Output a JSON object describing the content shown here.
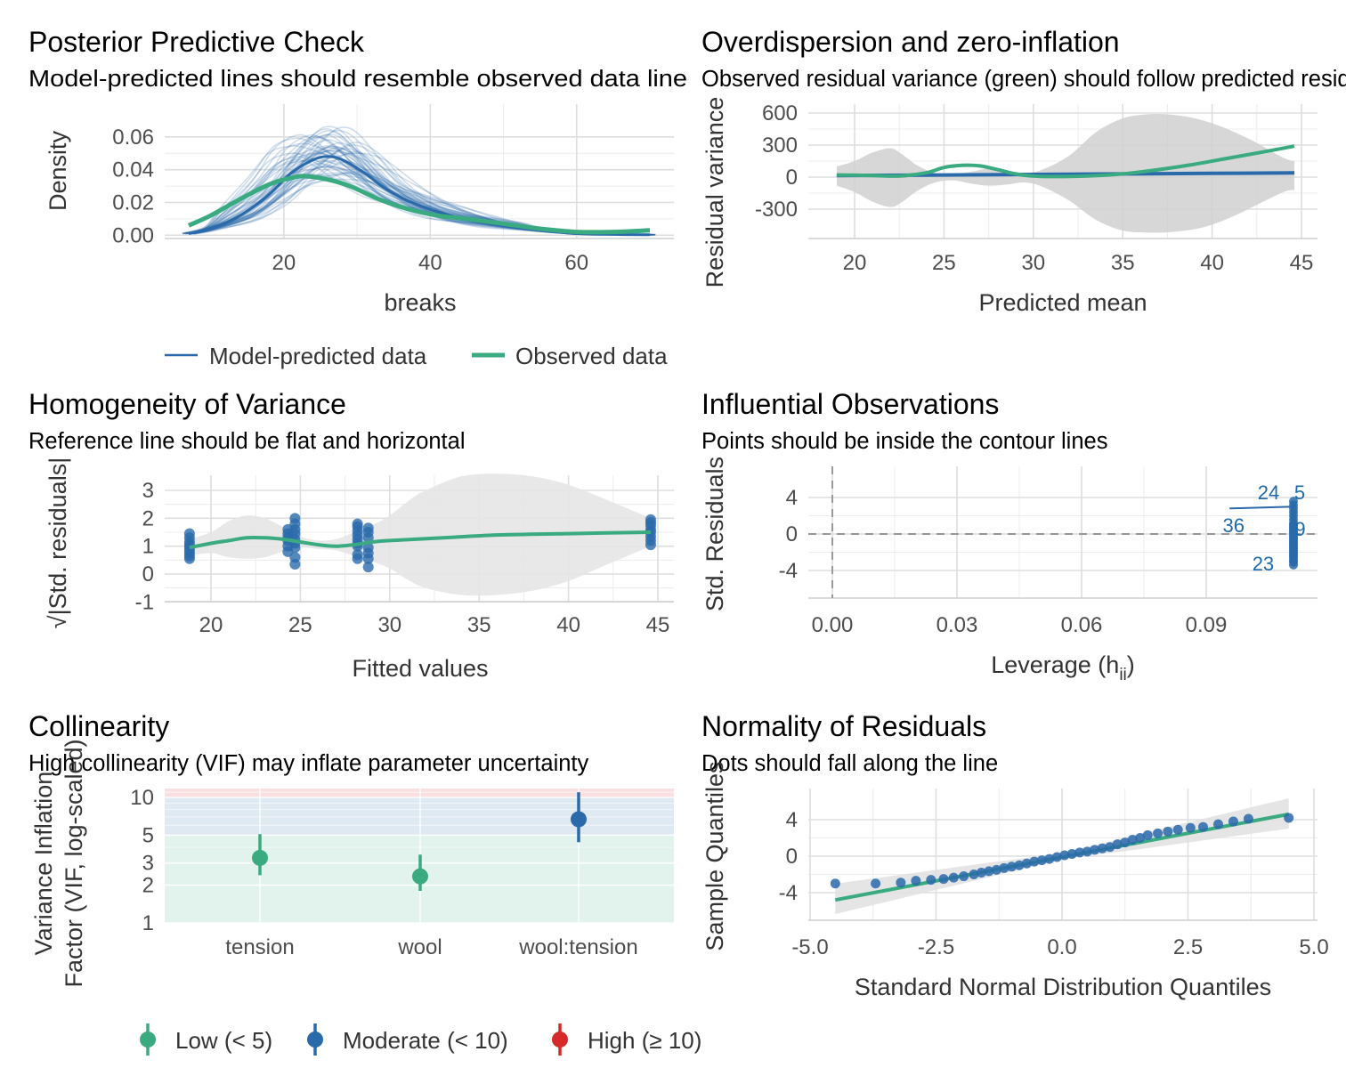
{
  "colors": {
    "blue": "#2a6aaa",
    "green": "#3aaa80",
    "red": "#d62a28",
    "band": "#d0d0d0"
  },
  "panels": {
    "ppc": {
      "title": "Posterior Predictive Check",
      "subtitle": "Model-predicted lines should resemble observed data line",
      "xlabel": "breaks",
      "ylabel": "Density",
      "legend": [
        "Model-predicted data",
        "Observed data"
      ]
    },
    "overdisp": {
      "title": "Overdispersion and zero-inflation",
      "subtitle": "Observed residual variance (green) should follow predicted residual variance (blue)",
      "xlabel": "Predicted mean",
      "ylabel": "Residual variance"
    },
    "homog": {
      "title": "Homogeneity of Variance",
      "subtitle": "Reference line should be flat and horizontal",
      "xlabel": "Fitted values",
      "ylabel": "√|Std. residuals|"
    },
    "infl": {
      "title": "Influential Observations",
      "subtitle": "Points should be inside the contour lines",
      "xlabel": "Leverage (h",
      "xlabel_sub": "ii",
      "xlabel_end": ")",
      "ylabel": "Std. Residuals"
    },
    "coll": {
      "title": "Collinearity",
      "subtitle": "High collinearity (VIF) may inflate parameter uncertainty",
      "ylabel1": "Variance Inflation",
      "ylabel2": "Factor (VIF, log-scaled)",
      "legend": [
        "Low (< 5)",
        "Moderate (< 10)",
        "High (≥ 10)"
      ]
    },
    "norm": {
      "title": "Normality of Residuals",
      "subtitle": "Dots should fall along the line",
      "xlabel": "Standard Normal Distribution Quantiles",
      "ylabel": "Sample Quantiles"
    }
  },
  "chart_data": [
    {
      "id": "ppc",
      "type": "line",
      "xlim": [
        7,
        70
      ],
      "ylim": [
        -0.002,
        0.08
      ],
      "xticks": [
        20,
        40,
        60
      ],
      "yticks": [
        0,
        0.02,
        0.04,
        0.06
      ],
      "ytick_labels": [
        "0.00",
        "0.02",
        "0.04",
        "0.06"
      ],
      "series": [
        {
          "name": "Observed data",
          "x": [
            7,
            10,
            14,
            18,
            21,
            23,
            26,
            29,
            33,
            37,
            41,
            45,
            50,
            55,
            60,
            65,
            70
          ],
          "y": [
            0.006,
            0.012,
            0.022,
            0.031,
            0.035,
            0.036,
            0.034,
            0.03,
            0.022,
            0.016,
            0.012,
            0.01,
            0.007,
            0.004,
            0.002,
            0.002,
            0.003
          ]
        },
        {
          "name": "Model-predicted data",
          "x": [
            7,
            10,
            14,
            18,
            21,
            24,
            26,
            28,
            31,
            34,
            38,
            42,
            46,
            50,
            55,
            60,
            65,
            70
          ],
          "y": [
            0.001,
            0.004,
            0.012,
            0.025,
            0.038,
            0.046,
            0.048,
            0.046,
            0.038,
            0.028,
            0.019,
            0.013,
            0.009,
            0.006,
            0.003,
            0.001,
            0.0005,
            0.0003
          ]
        }
      ]
    },
    {
      "id": "overdisp",
      "type": "area",
      "xlim": [
        17.5,
        45.8
      ],
      "ylim": [
        -560,
        660
      ],
      "xticks": [
        20,
        25,
        30,
        35,
        40,
        45
      ],
      "yticks": [
        -300,
        0,
        300,
        600
      ],
      "observed": {
        "x": [
          19,
          21,
          22.5,
          24,
          25,
          26,
          27,
          28,
          29,
          30,
          31,
          33,
          35,
          37,
          39,
          41,
          43,
          44.6
        ],
        "y": [
          20,
          15,
          10,
          40,
          90,
          110,
          105,
          70,
          30,
          10,
          5,
          10,
          30,
          70,
          120,
          180,
          240,
          290
        ]
      },
      "predicted": {
        "x": [
          19,
          25,
          30,
          35,
          40,
          44.6
        ],
        "y": [
          15,
          20,
          25,
          30,
          35,
          40
        ]
      },
      "band": {
        "x": [
          19,
          20,
          21,
          22,
          22.6,
          23.5,
          24.5,
          25.5,
          26.5,
          27.5,
          28.5,
          29.5,
          30.5,
          32,
          33.5,
          35,
          36.5,
          38,
          39.5,
          41,
          42.5,
          44,
          44.6
        ],
        "upper": [
          100,
          150,
          230,
          270,
          220,
          110,
          40,
          30,
          50,
          80,
          60,
          40,
          70,
          200,
          420,
          550,
          590,
          580,
          530,
          440,
          320,
          180,
          150
        ],
        "lower": [
          -80,
          -140,
          -230,
          -280,
          -240,
          -130,
          -50,
          -30,
          -60,
          -80,
          -70,
          -50,
          -90,
          -220,
          -400,
          -500,
          -520,
          -510,
          -470,
          -380,
          -260,
          -140,
          -120
        ]
      }
    },
    {
      "id": "homog",
      "type": "scatter",
      "xlim": [
        17.5,
        45.8
      ],
      "ylim": [
        -1.05,
        3.65
      ],
      "xticks": [
        20,
        25,
        30,
        35,
        40,
        45
      ],
      "yticks": [
        -1,
        0,
        1,
        2,
        3
      ],
      "points": [
        [
          18.8,
          0.55
        ],
        [
          18.8,
          0.65
        ],
        [
          18.8,
          0.75
        ],
        [
          18.8,
          0.85
        ],
        [
          18.8,
          0.95
        ],
        [
          18.8,
          1.05
        ],
        [
          18.8,
          1.15
        ],
        [
          18.8,
          1.3
        ],
        [
          18.8,
          1.45
        ],
        [
          24.3,
          0.8
        ],
        [
          24.3,
          1.0
        ],
        [
          24.3,
          1.2
        ],
        [
          24.3,
          1.3
        ],
        [
          24.3,
          1.45
        ],
        [
          24.3,
          1.6
        ],
        [
          24.7,
          0.95
        ],
        [
          24.7,
          1.1
        ],
        [
          24.7,
          1.25
        ],
        [
          24.7,
          1.45
        ],
        [
          24.7,
          1.6
        ],
        [
          24.7,
          1.8
        ],
        [
          24.7,
          2.0
        ],
        [
          24.7,
          0.6
        ],
        [
          24.7,
          0.35
        ],
        [
          28.2,
          1.1
        ],
        [
          28.2,
          1.25
        ],
        [
          28.2,
          1.4
        ],
        [
          28.2,
          1.55
        ],
        [
          28.2,
          1.7
        ],
        [
          28.2,
          1.8
        ],
        [
          28.2,
          0.55
        ],
        [
          28.2,
          0.7
        ],
        [
          28.2,
          1.0
        ],
        [
          28.8,
          0.55
        ],
        [
          28.8,
          0.75
        ],
        [
          28.8,
          0.95
        ],
        [
          28.8,
          1.3
        ],
        [
          28.8,
          1.5
        ],
        [
          28.8,
          1.65
        ],
        [
          28.8,
          0.25
        ],
        [
          44.6,
          1.05
        ],
        [
          44.6,
          1.2
        ],
        [
          44.6,
          1.35
        ],
        [
          44.6,
          1.5
        ],
        [
          44.6,
          1.6
        ],
        [
          44.6,
          1.75
        ],
        [
          44.6,
          1.85
        ],
        [
          44.6,
          1.95
        ]
      ],
      "loess": {
        "x": [
          18.8,
          20,
          21,
          22,
          23,
          24,
          25,
          26,
          27,
          28,
          29,
          30,
          33,
          36,
          40,
          44.6
        ],
        "y": [
          0.95,
          1.1,
          1.2,
          1.3,
          1.3,
          1.25,
          1.15,
          1.05,
          1.0,
          1.05,
          1.15,
          1.2,
          1.3,
          1.4,
          1.45,
          1.5
        ]
      },
      "band": {
        "x": [
          18.8,
          20,
          21,
          22,
          23,
          24,
          25,
          26,
          27,
          28,
          29,
          30,
          31,
          32,
          34,
          36,
          38,
          40,
          42,
          44.6
        ],
        "upper": [
          1.25,
          1.5,
          1.9,
          2.1,
          2.0,
          1.7,
          1.35,
          1.2,
          1.25,
          1.5,
          1.75,
          2.1,
          2.6,
          3.0,
          3.5,
          3.6,
          3.5,
          3.2,
          2.7,
          2.0
        ],
        "lower": [
          0.65,
          0.75,
          0.6,
          0.55,
          0.6,
          0.8,
          0.95,
          0.9,
          0.85,
          0.65,
          0.45,
          0.2,
          -0.2,
          -0.5,
          -0.75,
          -0.75,
          -0.6,
          -0.25,
          0.3,
          1.0
        ]
      }
    },
    {
      "id": "infl",
      "type": "scatter",
      "xlim": [
        -0.006,
        0.118
      ],
      "ylim": [
        -7,
        7
      ],
      "xticks": [
        0,
        0.03,
        0.06,
        0.09
      ],
      "xtick_labels": [
        "0.00",
        "0.03",
        "0.06",
        "0.09"
      ],
      "yticks": [
        -4,
        0,
        4
      ],
      "points_x": 0.111,
      "points_y": [
        -3.4,
        -3.1,
        -2.9,
        -2.6,
        -2.4,
        -2.2,
        -2.0,
        -1.8,
        -1.6,
        -1.4,
        -1.2,
        -1.0,
        -0.8,
        -0.6,
        -0.4,
        -0.2,
        0.0,
        0.2,
        0.4,
        0.6,
        0.8,
        1.0,
        1.2,
        1.6,
        2.0,
        2.4,
        2.8,
        3.2,
        3.6
      ],
      "labels": [
        {
          "text": "24",
          "x": 0.105,
          "y": 4.6
        },
        {
          "text": "5",
          "x": 0.1125,
          "y": 4.6
        },
        {
          "text": "36",
          "x": 0.0966,
          "y": 1.0
        },
        {
          "text": "9",
          "x": 0.1126,
          "y": 0.6
        },
        {
          "text": "23",
          "x": 0.1037,
          "y": -3.2
        }
      ]
    },
    {
      "id": "coll",
      "type": "scatter",
      "categories": [
        "tension",
        "wool",
        "wool:tension"
      ],
      "log_ylim": [
        1,
        11.5
      ],
      "yticks": [
        1,
        2,
        3,
        5,
        10
      ],
      "points": [
        {
          "cat": "tension",
          "vif": 3.3,
          "lo": 2.4,
          "hi": 5.1,
          "level": "low"
        },
        {
          "cat": "wool",
          "vif": 2.35,
          "lo": 1.8,
          "hi": 3.5,
          "level": "low"
        },
        {
          "cat": "wool:tension",
          "vif": 6.7,
          "lo": 4.4,
          "hi": 11.0,
          "level": "moderate"
        }
      ]
    },
    {
      "id": "norm",
      "type": "scatter",
      "xlim": [
        -5,
        5
      ],
      "ylim": [
        -7,
        7
      ],
      "xticks": [
        -5,
        -2.5,
        0,
        2.5,
        5
      ],
      "xtick_labels": [
        "-5.0",
        "-2.5",
        "0.0",
        "2.5",
        "5.0"
      ],
      "yticks": [
        -4,
        0,
        4
      ],
      "line": {
        "x": [
          -4.5,
          4.5
        ],
        "y": [
          -4.8,
          4.6
        ]
      },
      "points": [
        [
          -4.5,
          -3.0
        ],
        [
          -3.7,
          -3.0
        ],
        [
          -3.2,
          -2.9
        ],
        [
          -2.9,
          -2.7
        ],
        [
          -2.6,
          -2.6
        ],
        [
          -2.35,
          -2.5
        ],
        [
          -2.15,
          -2.35
        ],
        [
          -1.95,
          -2.2
        ],
        [
          -1.75,
          -2.0
        ],
        [
          -1.6,
          -1.8
        ],
        [
          -1.45,
          -1.65
        ],
        [
          -1.3,
          -1.5
        ],
        [
          -1.15,
          -1.3
        ],
        [
          -1.0,
          -1.15
        ],
        [
          -0.85,
          -1.0
        ],
        [
          -0.7,
          -0.8
        ],
        [
          -0.55,
          -0.6
        ],
        [
          -0.4,
          -0.45
        ],
        [
          -0.25,
          -0.3
        ],
        [
          -0.1,
          -0.1
        ],
        [
          0.05,
          0.1
        ],
        [
          0.2,
          0.25
        ],
        [
          0.35,
          0.4
        ],
        [
          0.5,
          0.5
        ],
        [
          0.65,
          0.7
        ],
        [
          0.8,
          0.85
        ],
        [
          0.95,
          1.0
        ],
        [
          1.1,
          1.3
        ],
        [
          1.25,
          1.5
        ],
        [
          1.4,
          1.8
        ],
        [
          1.55,
          2.0
        ],
        [
          1.7,
          2.3
        ],
        [
          1.9,
          2.5
        ],
        [
          2.1,
          2.7
        ],
        [
          2.3,
          2.9
        ],
        [
          2.55,
          3.1
        ],
        [
          2.8,
          3.2
        ],
        [
          3.1,
          3.5
        ],
        [
          3.4,
          3.8
        ],
        [
          3.7,
          4.1
        ],
        [
          4.5,
          4.2
        ]
      ]
    }
  ]
}
